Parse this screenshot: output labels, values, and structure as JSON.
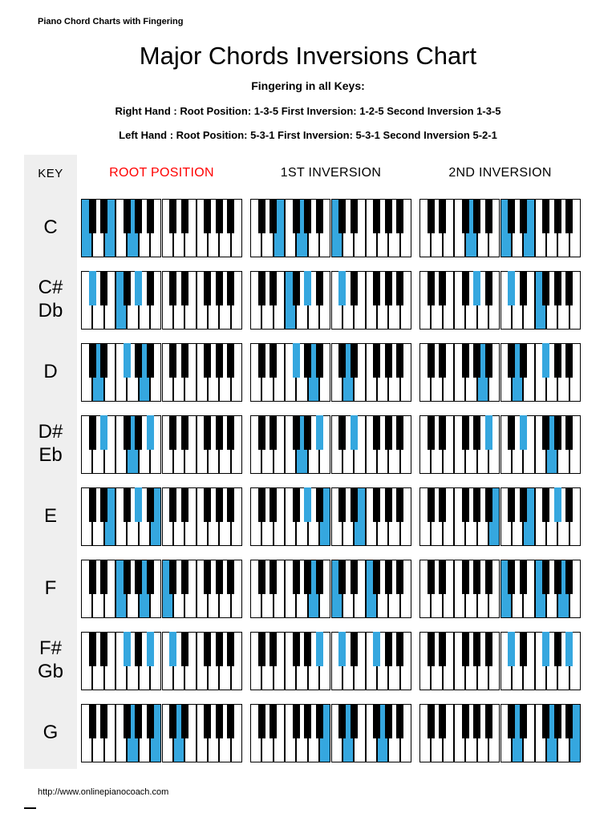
{
  "doc_title": "Piano Chord Charts with Fingering",
  "title": "Major Chords Inversions Chart",
  "subtitle": "Fingering in all Keys:",
  "fingering": {
    "right": "Right Hand : Root Position: 1-3-5 First Inversion: 1-2-5 Second Inversion 1-3-5",
    "left": "Left Hand : Root Position: 5-3-1 First Inversion: 5-3-1 Second Inversion 5-2-1"
  },
  "columns": {
    "key": "KEY",
    "root": "ROOT POSITION",
    "first": "1ST INVERSION",
    "second": "2ND INVERSION"
  },
  "footer": "http://www.onlinepianocoach.com",
  "colors": {
    "highlight_blue": "#35A7DF",
    "root_header_red": "#FF0000",
    "key_band_gray": "#EFEFEF"
  },
  "keyboard_range": "C4-B5",
  "rows": [
    {
      "label_lines": [
        "C"
      ],
      "root": [
        "C4",
        "E4",
        "G4"
      ],
      "first": [
        "E4",
        "G4",
        "C5"
      ],
      "second": [
        "G4",
        "C5",
        "E5"
      ]
    },
    {
      "label_lines": [
        "C#",
        "Db"
      ],
      "root": [
        "C#4",
        "F4",
        "G#4"
      ],
      "first": [
        "F4",
        "G#4",
        "C#5"
      ],
      "second": [
        "G#4",
        "C#5",
        "F5"
      ]
    },
    {
      "label_lines": [
        "D"
      ],
      "root": [
        "D4",
        "F#4",
        "A4"
      ],
      "first": [
        "F#4",
        "A4",
        "D5"
      ],
      "second": [
        "A4",
        "D5",
        "F#5"
      ]
    },
    {
      "label_lines": [
        "D#",
        "Eb"
      ],
      "root": [
        "D#4",
        "G4",
        "A#4"
      ],
      "first": [
        "G4",
        "A#4",
        "D#5"
      ],
      "second": [
        "A#4",
        "D#5",
        "G5"
      ]
    },
    {
      "label_lines": [
        "E"
      ],
      "root": [
        "E4",
        "G#4",
        "B4"
      ],
      "first": [
        "G#4",
        "B4",
        "E5"
      ],
      "second": [
        "B4",
        "E5",
        "G#5"
      ]
    },
    {
      "label_lines": [
        "F"
      ],
      "root": [
        "F4",
        "A4",
        "C5"
      ],
      "first": [
        "A4",
        "C5",
        "F5"
      ],
      "second": [
        "C5",
        "F5",
        "A5"
      ]
    },
    {
      "label_lines": [
        "F#",
        "Gb"
      ],
      "root": [
        "F#4",
        "A#4",
        "C#5"
      ],
      "first": [
        "A#4",
        "C#5",
        "F#5"
      ],
      "second": [
        "C#5",
        "F#5",
        "A#5"
      ]
    },
    {
      "label_lines": [
        "G"
      ],
      "root": [
        "G4",
        "B4",
        "D5"
      ],
      "first": [
        "B4",
        "D5",
        "G5"
      ],
      "second": [
        "D5",
        "G5",
        "B5"
      ]
    }
  ]
}
